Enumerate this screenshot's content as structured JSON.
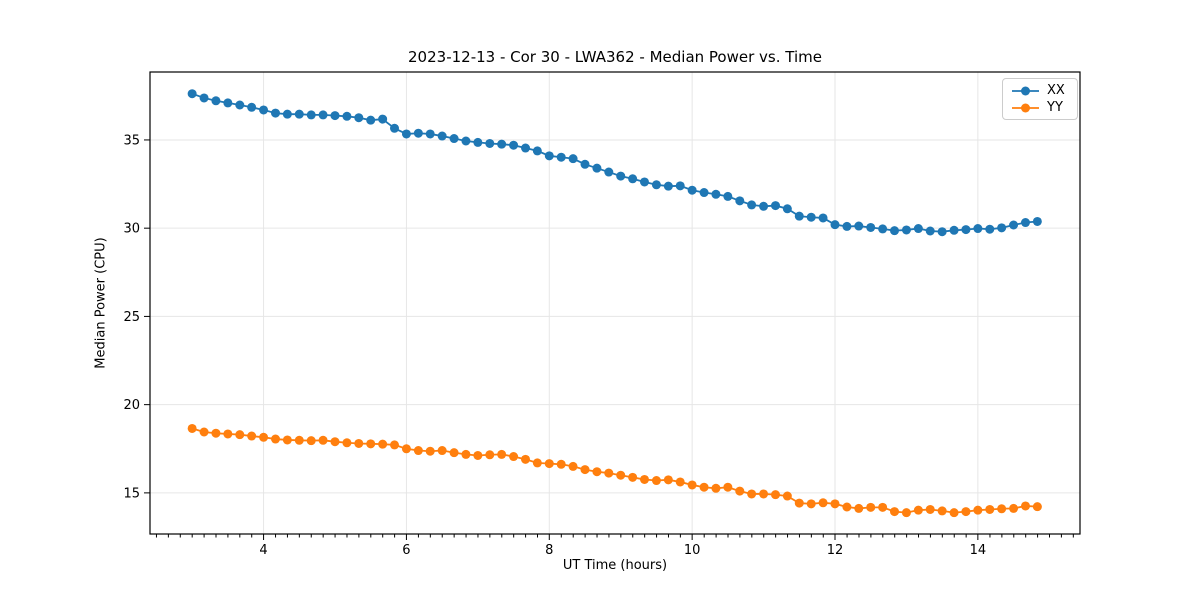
{
  "chart_data": {
    "type": "line",
    "title": "2023-12-13 - Cor 30 - LWA362 - Median Power vs. Time",
    "xlabel": "UT Time (hours)",
    "ylabel": "Median Power (CPU)",
    "xlim": [
      2.41,
      15.43
    ],
    "ylim": [
      12.67,
      38.85
    ],
    "x_ticks": [
      4,
      6,
      8,
      10,
      12,
      14
    ],
    "y_ticks": [
      15,
      20,
      25,
      30,
      35
    ],
    "x_minor_step": 0.1667,
    "grid": true,
    "grid_color": "#e6e6e6",
    "axis_color": "#000000",
    "legend_position": "upper right",
    "x": [
      3.0,
      3.167,
      3.333,
      3.5,
      3.667,
      3.833,
      4.0,
      4.167,
      4.333,
      4.5,
      4.667,
      4.833,
      5.0,
      5.167,
      5.333,
      5.5,
      5.667,
      5.833,
      6.0,
      6.167,
      6.333,
      6.5,
      6.667,
      6.833,
      7.0,
      7.167,
      7.333,
      7.5,
      7.667,
      7.833,
      8.0,
      8.167,
      8.333,
      8.5,
      8.667,
      8.833,
      9.0,
      9.167,
      9.333,
      9.5,
      9.667,
      9.833,
      10.0,
      10.167,
      10.333,
      10.5,
      10.667,
      10.833,
      11.0,
      11.167,
      11.333,
      11.5,
      11.667,
      11.833,
      12.0,
      12.167,
      12.333,
      12.5,
      12.667,
      12.833,
      13.0,
      13.167,
      13.333,
      13.5,
      13.667,
      13.833,
      14.0,
      14.167,
      14.333,
      14.5,
      14.667,
      14.833
    ],
    "series": [
      {
        "name": "XX",
        "color": "#1f77b4",
        "values": [
          37.62,
          37.38,
          37.22,
          37.1,
          36.98,
          36.85,
          36.7,
          36.52,
          36.46,
          36.46,
          36.42,
          36.42,
          36.38,
          36.34,
          36.26,
          36.12,
          36.18,
          35.66,
          35.34,
          35.38,
          35.34,
          35.22,
          35.08,
          34.94,
          34.86,
          34.8,
          34.76,
          34.7,
          34.54,
          34.38,
          34.1,
          34.02,
          33.94,
          33.62,
          33.4,
          33.18,
          32.95,
          32.8,
          32.62,
          32.46,
          32.38,
          32.4,
          32.15,
          32.02,
          31.92,
          31.8,
          31.55,
          31.32,
          31.24,
          31.28,
          31.1,
          30.68,
          30.62,
          30.58,
          30.2,
          30.1,
          30.12,
          30.04,
          29.96,
          29.86,
          29.9,
          29.98,
          29.84,
          29.8,
          29.88,
          29.92,
          29.98,
          29.94,
          30.02,
          30.18,
          30.32,
          30.38
        ]
      },
      {
        "name": "YY",
        "color": "#ff7f0e",
        "values": [
          18.65,
          18.45,
          18.38,
          18.34,
          18.3,
          18.22,
          18.15,
          18.05,
          18.0,
          17.98,
          17.96,
          17.98,
          17.9,
          17.84,
          17.8,
          17.78,
          17.76,
          17.72,
          17.5,
          17.4,
          17.36,
          17.4,
          17.28,
          17.18,
          17.12,
          17.16,
          17.18,
          17.06,
          16.9,
          16.7,
          16.66,
          16.62,
          16.5,
          16.32,
          16.2,
          16.12,
          16.0,
          15.88,
          15.76,
          15.7,
          15.74,
          15.62,
          15.45,
          15.32,
          15.26,
          15.32,
          15.1,
          14.94,
          14.94,
          14.9,
          14.82,
          14.42,
          14.38,
          14.44,
          14.38,
          14.2,
          14.12,
          14.18,
          14.18,
          13.94,
          13.88,
          14.02,
          14.06,
          13.98,
          13.88,
          13.94,
          14.02,
          14.06,
          14.1,
          14.12,
          14.26,
          14.22
        ]
      }
    ]
  }
}
